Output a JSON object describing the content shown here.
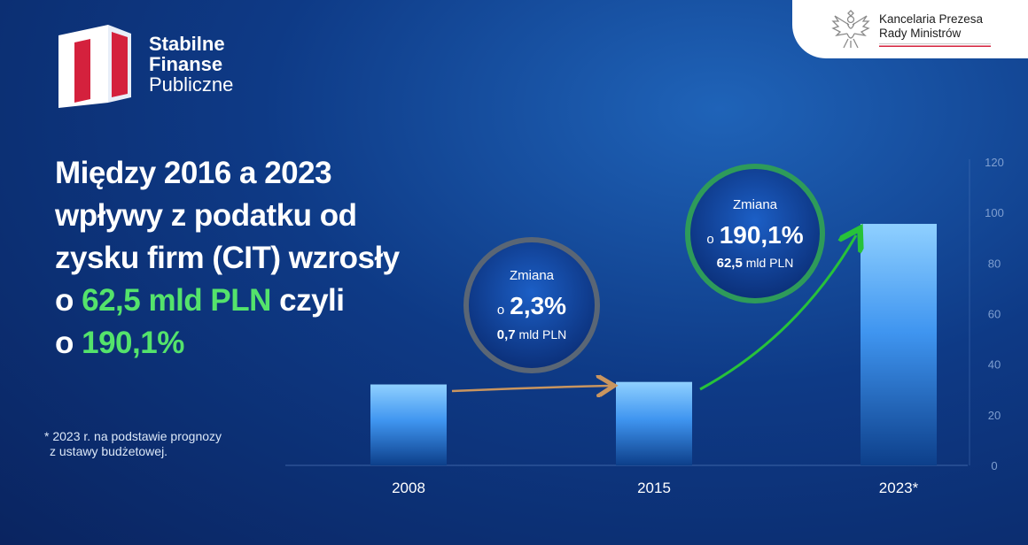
{
  "brand": {
    "line1": "Stabilne",
    "line2": "Finanse",
    "line3": "Publiczne"
  },
  "institution": {
    "line1": "Kancelaria Prezesa",
    "line2": "Rady Ministrów"
  },
  "headline": {
    "line1": "Między 2016 a 2023",
    "line2": "wpływy z podatku od",
    "line3": "zysku firm (CIT) wzrosły",
    "line4_prefix": "o ",
    "line4_highlight": "62,5 mld PLN",
    "line4_suffix": " czyli",
    "line5_prefix": "o ",
    "line5_highlight": "190,1%"
  },
  "footnote": {
    "line1": "* 2023 r. na podstawie prognozy",
    "line2": "z ustawy budżetowej."
  },
  "colors": {
    "highlight": "#54e36b",
    "arrow_left": "#c9955f",
    "arrow_right": "#27c23a",
    "ring_left": "#5a6675",
    "ring_right": "#2e9b5a"
  },
  "callouts": {
    "left": {
      "label": "Zmiana",
      "prefix": "o",
      "value": "2,3%",
      "sub_bold": "0,7",
      "sub_unit": " mld PLN"
    },
    "right": {
      "label": "Zmiana",
      "prefix": "o",
      "value": "190,1%",
      "sub_bold": "62,5",
      "sub_unit": " mld PLN"
    }
  },
  "chart_data": {
    "type": "bar",
    "categories": [
      "2008",
      "2015",
      "2023*"
    ],
    "values": [
      32,
      33,
      95.5
    ],
    "ylim": [
      0,
      120
    ],
    "yticks": [
      "0",
      "20",
      "40",
      "60",
      "80",
      "100",
      "120"
    ],
    "title": "",
    "xlabel": "",
    "ylabel": "",
    "grid": false,
    "axis_side": "right"
  }
}
